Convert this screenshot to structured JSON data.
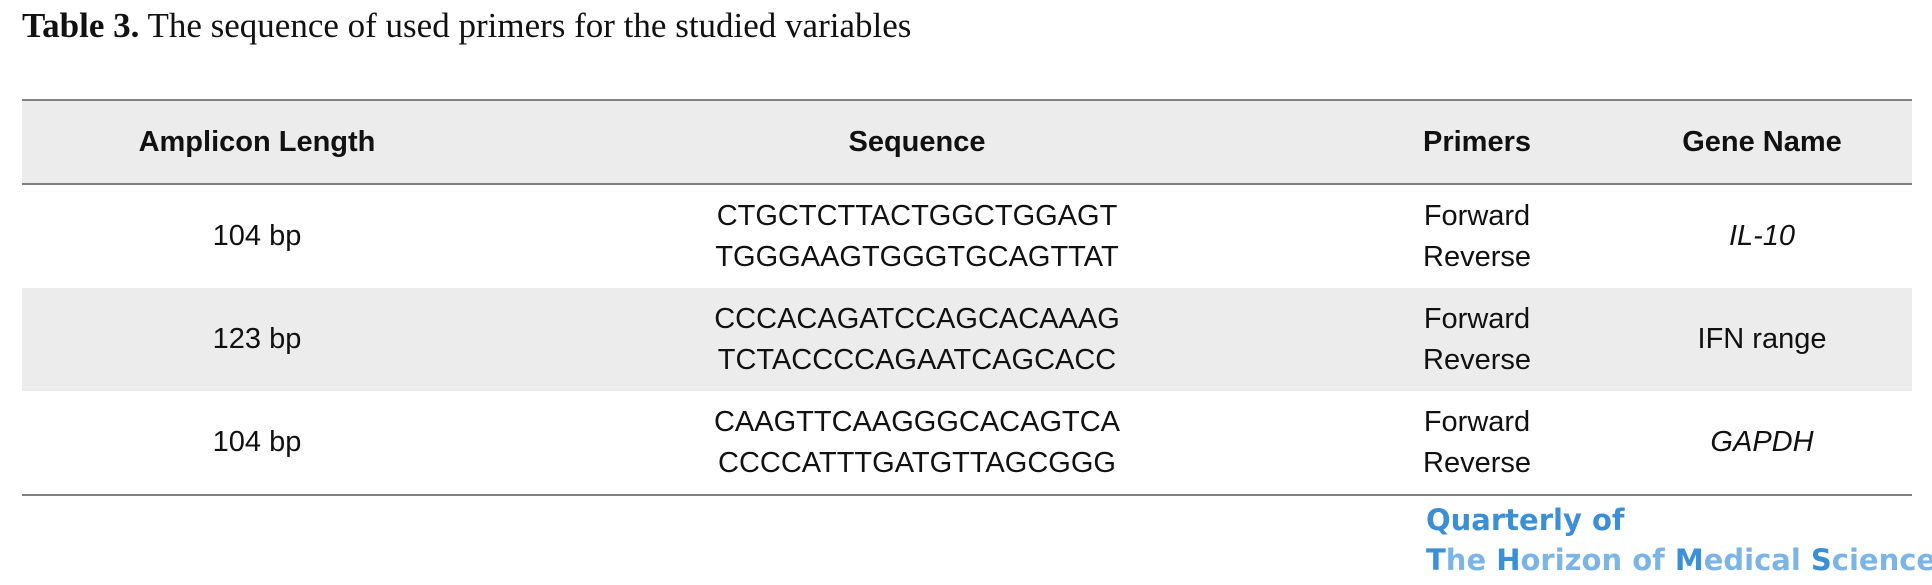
{
  "caption": {
    "label": "Table 3.",
    "text": " The sequence of used primers for the studied variables"
  },
  "table": {
    "headers": [
      "Amplicon Length",
      "Sequence",
      "Primers",
      "Gene Name"
    ],
    "rows": [
      {
        "amplicon_length": "104 bp",
        "sequence_forward": "CTGCTCTTACTGGCTGGAGT",
        "sequence_reverse": "TGGGAAGTGGGTGCAGTTAT",
        "primer_forward": "Forward",
        "primer_reverse": "Reverse",
        "gene_name": "IL-10"
      },
      {
        "amplicon_length": "123 bp",
        "sequence_forward": "CCCACAGATCCAGCACAAAG",
        "sequence_reverse": "TCTACCCCAGAATCAGCACC",
        "primer_forward": "Forward",
        "primer_reverse": "Reverse",
        "gene_name": "IFN range"
      },
      {
        "amplicon_length": "104 bp",
        "sequence_forward": "CAAGTTCAAGGGCACAGTCA",
        "sequence_reverse": "CCCCATTTGATGTTAGCGGG",
        "primer_forward": "Forward",
        "primer_reverse": "Reverse",
        "gene_name": "GAPDH"
      }
    ]
  },
  "journal_logo": {
    "line1": "Quarterly of",
    "line2_parts": [
      "T",
      "he ",
      "H",
      "orizon of ",
      "M",
      "edical ",
      "S",
      "ciences"
    ],
    "colors": {
      "primary": "#3b8fd6",
      "accent": "#7db4e6"
    }
  }
}
